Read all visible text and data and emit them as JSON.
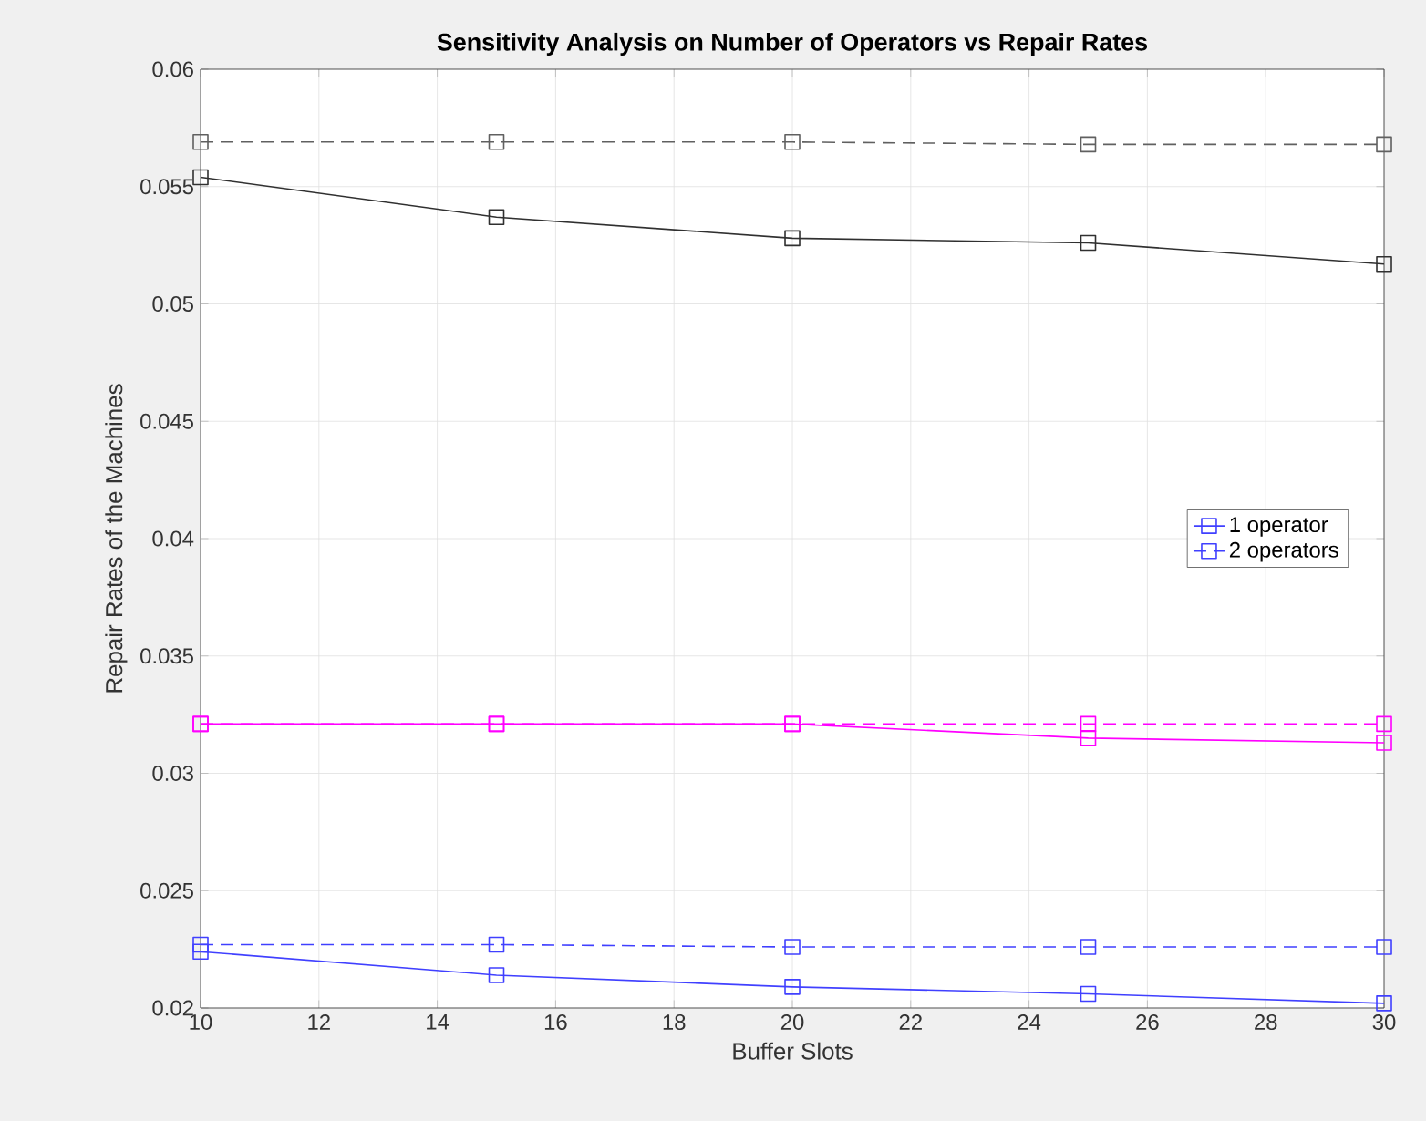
{
  "chart_data": {
    "type": "line",
    "title": "Sensitivity Analysis on Number of Operators vs Repair Rates",
    "xlabel": "Buffer Slots",
    "ylabel": "Repair Rates of the Machines",
    "x": [
      10,
      15,
      20,
      25,
      30
    ],
    "series": [
      {
        "color": "#606060",
        "line_style": "dashed",
        "values": [
          0.0569,
          0.0569,
          0.0569,
          0.0568,
          0.0568
        ]
      },
      {
        "color": "#303030",
        "line_style": "solid",
        "values": [
          0.0554,
          0.0537,
          0.0528,
          0.0526,
          0.0517
        ]
      },
      {
        "color": "#ff00ff",
        "line_style": "dashed",
        "values": [
          0.0321,
          0.0321,
          0.0321,
          0.0321,
          0.0321
        ]
      },
      {
        "color": "#ff00ff",
        "line_style": "solid",
        "values": [
          0.0321,
          0.0321,
          0.0321,
          0.0315,
          0.0313
        ]
      },
      {
        "name": "1 operator",
        "color": "#4040ff",
        "line_style": "solid",
        "values": [
          0.0224,
          0.0214,
          0.0209,
          0.0206,
          0.0202
        ]
      },
      {
        "name": "2 operators",
        "color": "#4040ff",
        "line_style": "dashed",
        "values": [
          0.0227,
          0.0227,
          0.0226,
          0.0226,
          0.0226
        ]
      }
    ],
    "xlim": [
      10,
      30
    ],
    "xticks": [
      10,
      12,
      14,
      16,
      18,
      20,
      22,
      24,
      26,
      28,
      30
    ],
    "ylim": [
      0.02,
      0.06
    ],
    "yticks": [
      0.02,
      0.025,
      0.03,
      0.035,
      0.04,
      0.045,
      0.05,
      0.055,
      0.06
    ],
    "grid": true,
    "legend": "right",
    "marker": "square"
  }
}
